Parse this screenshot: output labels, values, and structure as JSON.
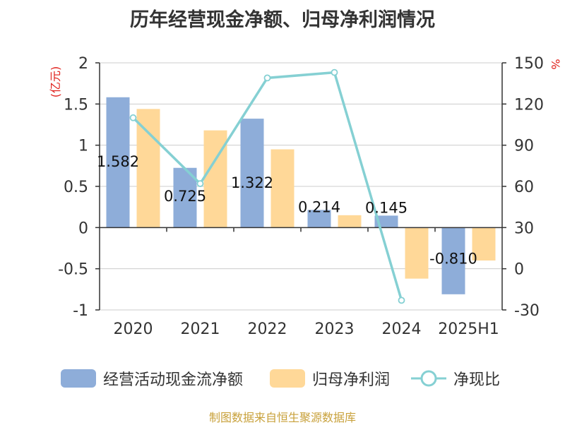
{
  "title": "历年经营现金净额、归母净利润情况",
  "source_note": "制图数据来自恒生聚源数据库",
  "colors": {
    "operating_cash": "#8eadd9",
    "net_profit": "#ffd898",
    "ratio": "#85d0d3",
    "unit": "#e0201b",
    "source": "#c8a13b"
  },
  "chart_data": {
    "type": "bar",
    "categories": [
      "2020",
      "2021",
      "2022",
      "2023",
      "2024",
      "2025H1"
    ],
    "left_axis": {
      "unit": "(亿元)",
      "ylim": [
        -1,
        2
      ],
      "ticks": [
        -1,
        -0.5,
        0,
        0.5,
        1,
        1.5,
        2
      ],
      "tick_labels": [
        "-1",
        "-0.5",
        "0",
        "0.5",
        "1",
        "1.5",
        "2"
      ]
    },
    "right_axis": {
      "unit": "%",
      "ylim": [
        -30,
        150
      ],
      "ticks": [
        -30,
        0,
        30,
        60,
        90,
        120,
        150
      ],
      "tick_labels": [
        "-30",
        "0",
        "30",
        "60",
        "90",
        "120",
        "150"
      ]
    },
    "grid": true,
    "legend_position": "bottom",
    "series": [
      {
        "name": "经营活动现金流净额",
        "type": "bar",
        "axis": "left",
        "values": [
          1.582,
          0.725,
          1.322,
          0.214,
          0.145,
          -0.81
        ],
        "data_labels": [
          "1.582",
          "0.725",
          "1.322",
          "0.214",
          "0.145",
          "-0.810"
        ]
      },
      {
        "name": "归母净利润",
        "type": "bar",
        "axis": "left",
        "values": [
          1.44,
          1.18,
          0.95,
          0.15,
          -0.62,
          -0.4
        ]
      },
      {
        "name": "净现比",
        "type": "line",
        "axis": "right",
        "values": [
          110,
          62,
          139,
          143,
          null,
          -23
        ],
        "x_positions": [
          0,
          1,
          2,
          3,
          4,
          4
        ]
      }
    ]
  },
  "legend": [
    {
      "label": "经营活动现金流净额",
      "icon": "bar-swatch"
    },
    {
      "label": "归母净利润",
      "icon": "bar-swatch"
    },
    {
      "label": "净现比",
      "icon": "line-circle-icon"
    }
  ]
}
